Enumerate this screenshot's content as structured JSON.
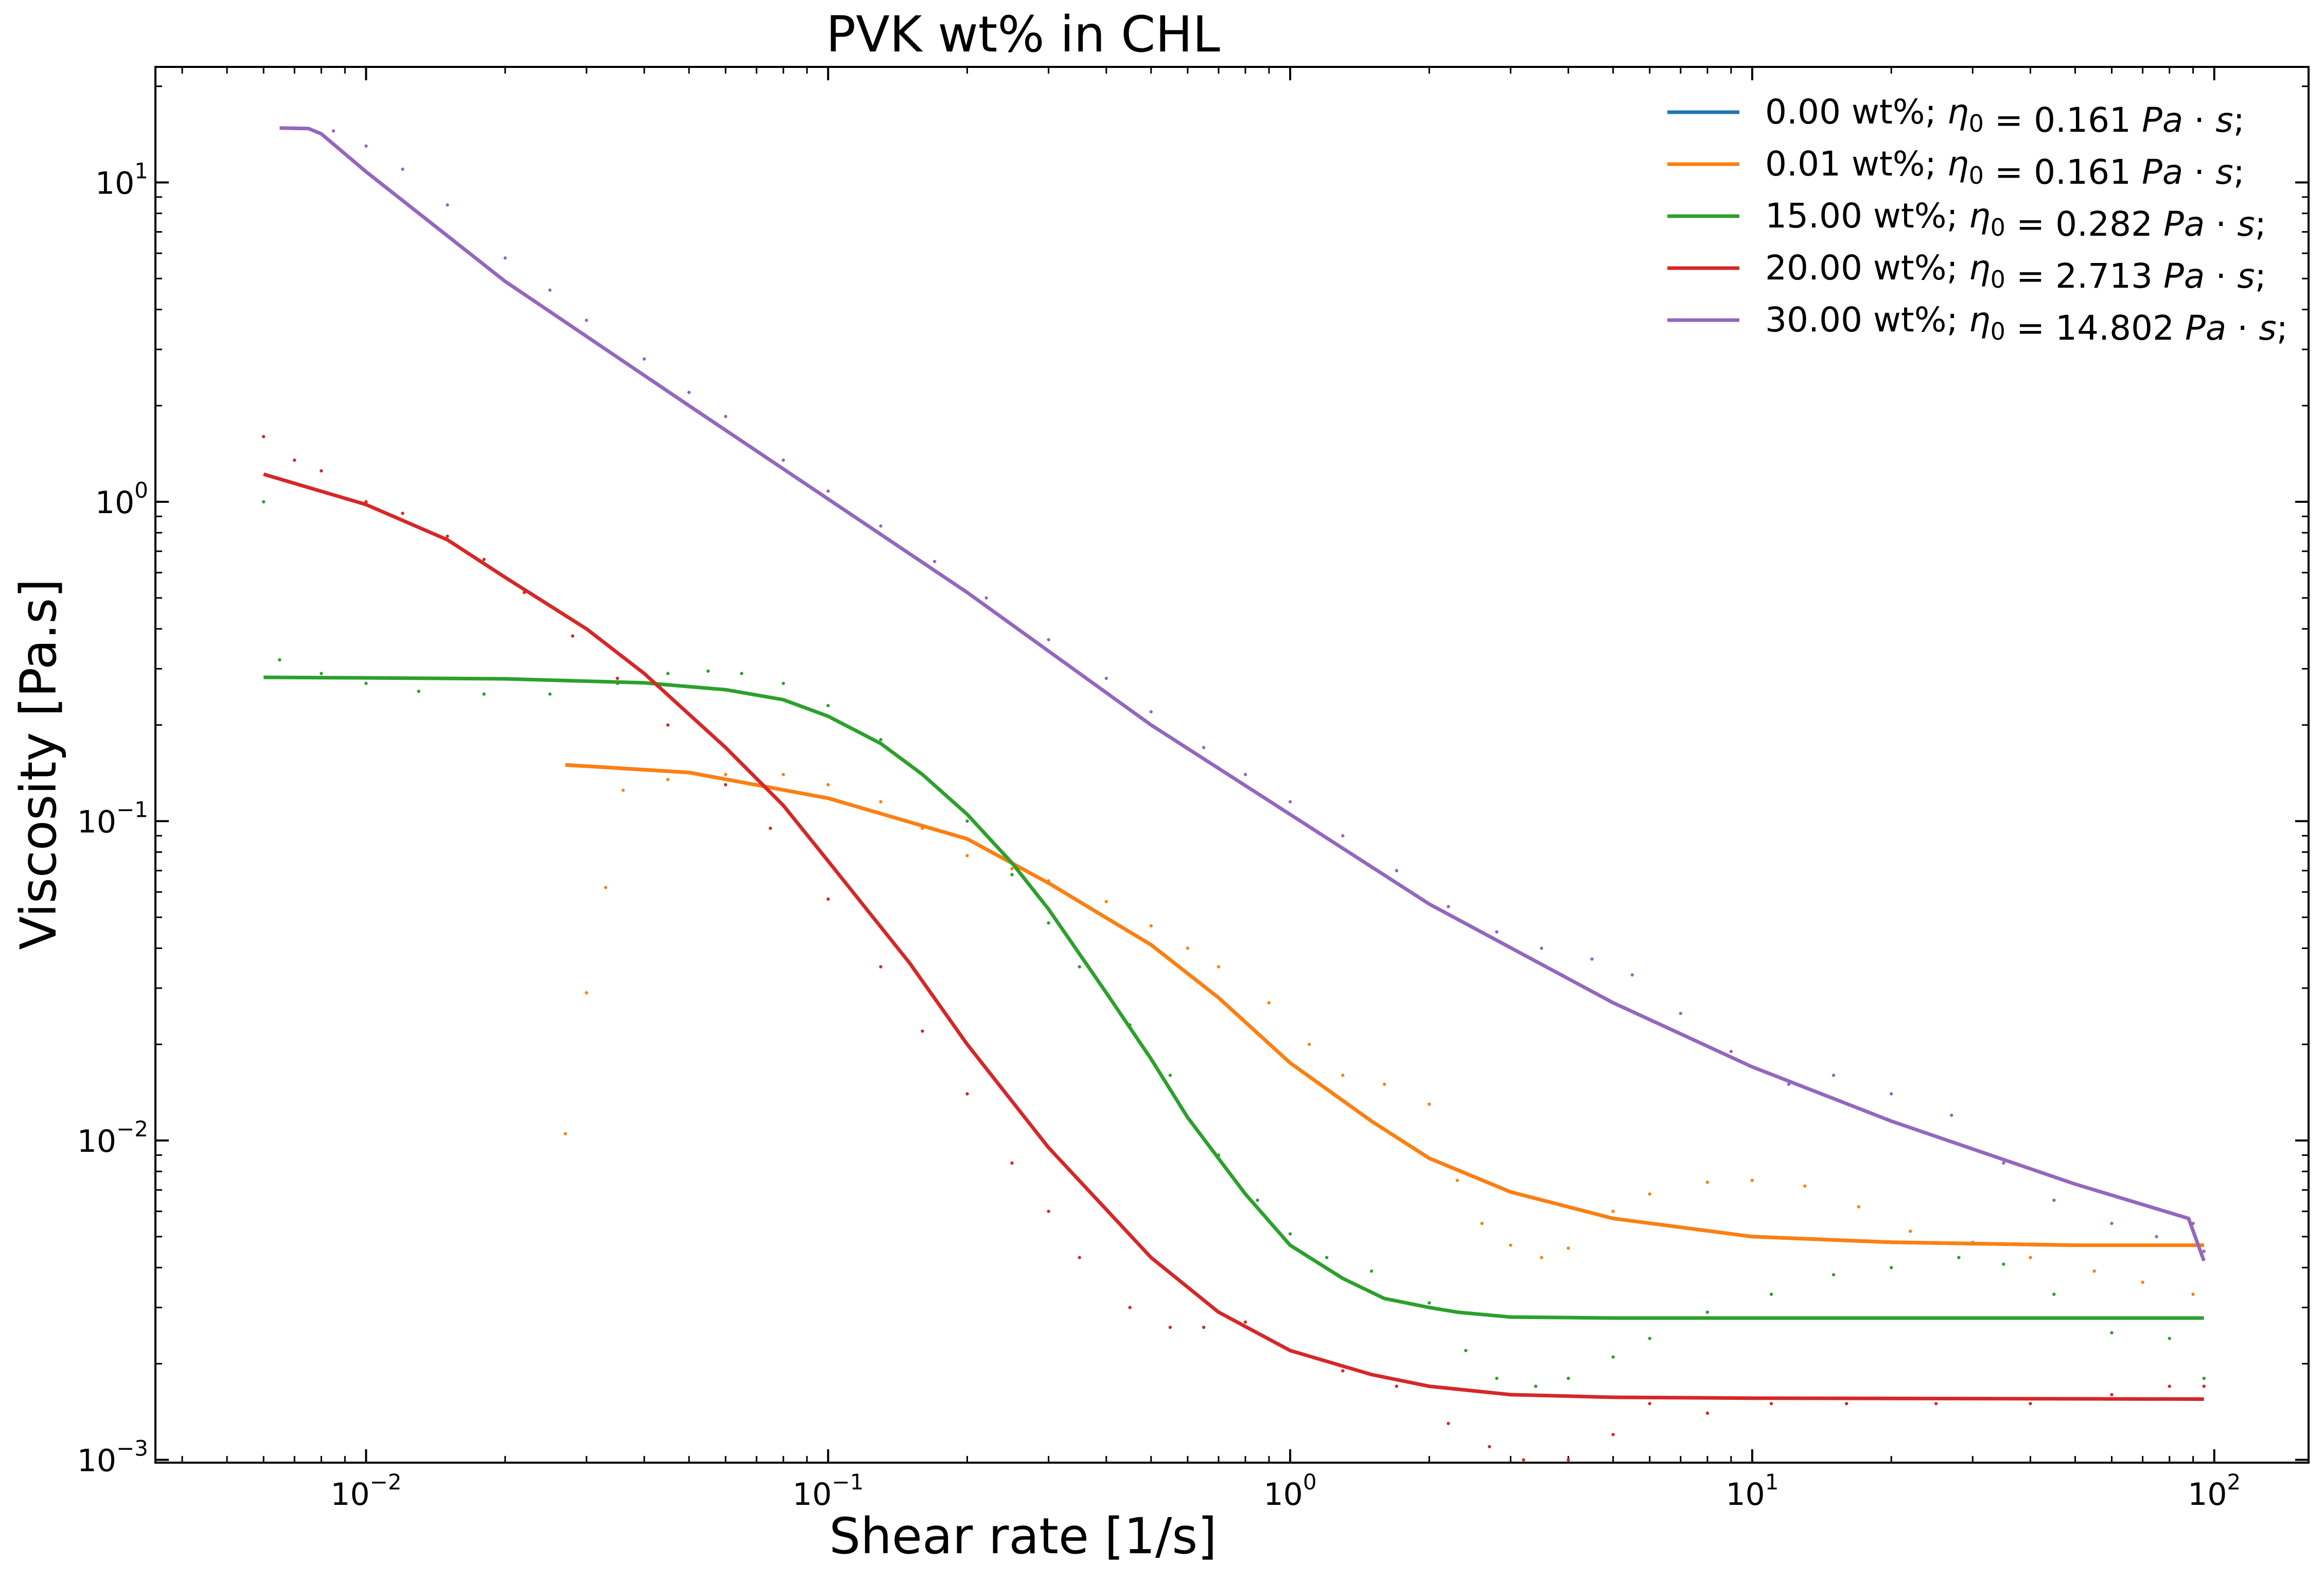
{
  "chart_data": {
    "type": "line",
    "title": "PVK wt% in CHL",
    "xlabel": "Shear rate [1/s]",
    "ylabel": "Viscosity [Pa.s]",
    "xscale": "log",
    "yscale": "log",
    "xlim": [
      0.0035,
      160
    ],
    "ylim": [
      0.00098,
      23
    ],
    "x_ticks": [
      {
        "value": 0.01,
        "base": "10",
        "exp": "−2"
      },
      {
        "value": 0.1,
        "base": "10",
        "exp": "−1"
      },
      {
        "value": 1,
        "base": "10",
        "exp": "0"
      },
      {
        "value": 10,
        "base": "10",
        "exp": "1"
      },
      {
        "value": 100,
        "base": "10",
        "exp": "2"
      }
    ],
    "y_ticks": [
      {
        "value": 0.001,
        "base": "10",
        "exp": "−3"
      },
      {
        "value": 0.01,
        "base": "10",
        "exp": "−2"
      },
      {
        "value": 0.1,
        "base": "10",
        "exp": "−1"
      },
      {
        "value": 1,
        "base": "10",
        "exp": "0"
      },
      {
        "value": 10,
        "base": "10",
        "exp": "1"
      }
    ],
    "legend_position": "top-right",
    "grid": false,
    "series": [
      {
        "name": "0.00 wt%; η0 = 0.161 Pa · s;",
        "legend_prefix": "0.00 wt%; ",
        "legend_eta": "0.161",
        "color": "#1f77b4",
        "fit": [
          [
            0.027,
            0.15
          ],
          [
            0.05,
            0.142
          ],
          [
            0.1,
            0.118
          ],
          [
            0.2,
            0.088
          ],
          [
            0.3,
            0.064
          ],
          [
            0.5,
            0.041
          ],
          [
            0.7,
            0.028
          ],
          [
            1.0,
            0.0175
          ],
          [
            1.5,
            0.0115
          ],
          [
            2.0,
            0.0088
          ],
          [
            3.0,
            0.0069
          ],
          [
            5.0,
            0.0057
          ],
          [
            10,
            0.005
          ],
          [
            20,
            0.0048
          ],
          [
            50,
            0.0047
          ],
          [
            95,
            0.0047
          ]
        ],
        "points": []
      },
      {
        "name": "0.01 wt%; η0 = 0.161 Pa · s;",
        "legend_prefix": "0.01 wt%; ",
        "legend_eta": "0.161",
        "color": "#ff7f0e",
        "fit": [
          [
            0.027,
            0.15
          ],
          [
            0.05,
            0.142
          ],
          [
            0.1,
            0.118
          ],
          [
            0.2,
            0.088
          ],
          [
            0.3,
            0.064
          ],
          [
            0.5,
            0.041
          ],
          [
            0.7,
            0.028
          ],
          [
            1.0,
            0.0175
          ],
          [
            1.5,
            0.0115
          ],
          [
            2.0,
            0.0088
          ],
          [
            3.0,
            0.0069
          ],
          [
            5.0,
            0.0057
          ],
          [
            10,
            0.005
          ],
          [
            20,
            0.0048
          ],
          [
            50,
            0.0047
          ],
          [
            95,
            0.0047
          ]
        ],
        "points": [
          [
            0.027,
            0.0105
          ],
          [
            0.03,
            0.029
          ],
          [
            0.033,
            0.062
          ],
          [
            0.036,
            0.125
          ],
          [
            0.045,
            0.135
          ],
          [
            0.06,
            0.14
          ],
          [
            0.08,
            0.14
          ],
          [
            0.1,
            0.13
          ],
          [
            0.13,
            0.115
          ],
          [
            0.16,
            0.095
          ],
          [
            0.2,
            0.078
          ],
          [
            0.25,
            0.071
          ],
          [
            0.3,
            0.065
          ],
          [
            0.4,
            0.056
          ],
          [
            0.5,
            0.047
          ],
          [
            0.6,
            0.04
          ],
          [
            0.7,
            0.035
          ],
          [
            0.9,
            0.027
          ],
          [
            1.1,
            0.02
          ],
          [
            1.3,
            0.016
          ],
          [
            1.6,
            0.015
          ],
          [
            2.0,
            0.013
          ],
          [
            2.3,
            0.0075
          ],
          [
            2.6,
            0.0055
          ],
          [
            3.0,
            0.0047
          ],
          [
            3.5,
            0.0043
          ],
          [
            4.0,
            0.0046
          ],
          [
            5.0,
            0.006
          ],
          [
            6.0,
            0.0068
          ],
          [
            8.0,
            0.0074
          ],
          [
            10,
            0.0075
          ],
          [
            13,
            0.0072
          ],
          [
            17,
            0.0062
          ],
          [
            22,
            0.0052
          ],
          [
            30,
            0.0048
          ],
          [
            40,
            0.0043
          ],
          [
            55,
            0.0039
          ],
          [
            70,
            0.0036
          ],
          [
            90,
            0.0033
          ]
        ]
      },
      {
        "name": "15.00 wt%; η0 = 0.282 Pa · s;",
        "legend_prefix": "15.00 wt%; ",
        "legend_eta": "0.282",
        "color": "#2ca02c",
        "fit": [
          [
            0.006,
            0.282
          ],
          [
            0.01,
            0.281
          ],
          [
            0.02,
            0.279
          ],
          [
            0.04,
            0.271
          ],
          [
            0.06,
            0.258
          ],
          [
            0.08,
            0.24
          ],
          [
            0.1,
            0.213
          ],
          [
            0.13,
            0.175
          ],
          [
            0.16,
            0.14
          ],
          [
            0.2,
            0.105
          ],
          [
            0.25,
            0.074
          ],
          [
            0.3,
            0.053
          ],
          [
            0.4,
            0.029
          ],
          [
            0.5,
            0.018
          ],
          [
            0.6,
            0.0118
          ],
          [
            0.8,
            0.0068
          ],
          [
            1.0,
            0.0047
          ],
          [
            1.3,
            0.0037
          ],
          [
            1.6,
            0.0032
          ],
          [
            2.0,
            0.003
          ],
          [
            2.3,
            0.0029
          ],
          [
            3.0,
            0.0028
          ],
          [
            5.0,
            0.00278
          ],
          [
            10,
            0.00278
          ],
          [
            95,
            0.00278
          ]
        ],
        "points": [
          [
            0.006,
            1.0
          ],
          [
            0.0065,
            0.32
          ],
          [
            0.008,
            0.29
          ],
          [
            0.01,
            0.27
          ],
          [
            0.013,
            0.255
          ],
          [
            0.018,
            0.25
          ],
          [
            0.025,
            0.25
          ],
          [
            0.035,
            0.27
          ],
          [
            0.045,
            0.29
          ],
          [
            0.055,
            0.295
          ],
          [
            0.065,
            0.29
          ],
          [
            0.08,
            0.27
          ],
          [
            0.1,
            0.23
          ],
          [
            0.13,
            0.18
          ],
          [
            0.16,
            0.14
          ],
          [
            0.2,
            0.1
          ],
          [
            0.25,
            0.068
          ],
          [
            0.3,
            0.048
          ],
          [
            0.35,
            0.035
          ],
          [
            0.45,
            0.023
          ],
          [
            0.55,
            0.016
          ],
          [
            0.7,
            0.009
          ],
          [
            0.85,
            0.0065
          ],
          [
            1.0,
            0.0051
          ],
          [
            1.2,
            0.0043
          ],
          [
            1.5,
            0.0039
          ],
          [
            2.0,
            0.0031
          ],
          [
            2.4,
            0.0022
          ],
          [
            2.8,
            0.0018
          ],
          [
            3.4,
            0.0017
          ],
          [
            4.0,
            0.0018
          ],
          [
            5.0,
            0.0021
          ],
          [
            6.0,
            0.0024
          ],
          [
            8.0,
            0.0029
          ],
          [
            11,
            0.0033
          ],
          [
            15,
            0.0038
          ],
          [
            20,
            0.004
          ],
          [
            28,
            0.0043
          ],
          [
            35,
            0.0041
          ],
          [
            45,
            0.0033
          ],
          [
            60,
            0.0025
          ],
          [
            80,
            0.0024
          ],
          [
            95,
            0.0018
          ]
        ]
      },
      {
        "name": "20.00 wt%; η0 = 2.713 Pa · s;",
        "legend_prefix": "20.00 wt%; ",
        "legend_eta": "2.713",
        "color": "#d62728",
        "fit": [
          [
            0.006,
            1.22
          ],
          [
            0.01,
            0.98
          ],
          [
            0.015,
            0.76
          ],
          [
            0.02,
            0.58
          ],
          [
            0.03,
            0.4
          ],
          [
            0.04,
            0.29
          ],
          [
            0.06,
            0.17
          ],
          [
            0.08,
            0.112
          ],
          [
            0.1,
            0.075
          ],
          [
            0.15,
            0.036
          ],
          [
            0.2,
            0.02
          ],
          [
            0.3,
            0.0095
          ],
          [
            0.5,
            0.0043
          ],
          [
            0.7,
            0.0029
          ],
          [
            1.0,
            0.0022
          ],
          [
            1.5,
            0.00185
          ],
          [
            2.0,
            0.0017
          ],
          [
            3.0,
            0.0016
          ],
          [
            5.0,
            0.00157
          ],
          [
            10,
            0.00156
          ],
          [
            95,
            0.00155
          ]
        ],
        "points": [
          [
            0.006,
            1.6
          ],
          [
            0.007,
            1.35
          ],
          [
            0.008,
            1.25
          ],
          [
            0.01,
            1.0
          ],
          [
            0.012,
            0.92
          ],
          [
            0.015,
            0.78
          ],
          [
            0.018,
            0.66
          ],
          [
            0.022,
            0.52
          ],
          [
            0.028,
            0.38
          ],
          [
            0.035,
            0.28
          ],
          [
            0.045,
            0.2
          ],
          [
            0.06,
            0.13
          ],
          [
            0.075,
            0.095
          ],
          [
            0.1,
            0.057
          ],
          [
            0.13,
            0.035
          ],
          [
            0.16,
            0.022
          ],
          [
            0.2,
            0.014
          ],
          [
            0.25,
            0.0085
          ],
          [
            0.3,
            0.006
          ],
          [
            0.35,
            0.0043
          ],
          [
            0.45,
            0.003
          ],
          [
            0.55,
            0.0026
          ],
          [
            0.65,
            0.0026
          ],
          [
            0.8,
            0.0027
          ],
          [
            1.0,
            0.0022
          ],
          [
            1.3,
            0.0019
          ],
          [
            1.7,
            0.0017
          ],
          [
            2.2,
            0.0013
          ],
          [
            2.7,
            0.0011
          ],
          [
            3.2,
            0.001
          ],
          [
            4.0,
            0.001
          ],
          [
            5.0,
            0.0012
          ],
          [
            6.0,
            0.0015
          ],
          [
            8.0,
            0.0014
          ],
          [
            11,
            0.0015
          ],
          [
            16,
            0.0015
          ],
          [
            25,
            0.0015
          ],
          [
            40,
            0.0015
          ],
          [
            60,
            0.0016
          ],
          [
            80,
            0.0017
          ],
          [
            95,
            0.0017
          ]
        ]
      },
      {
        "name": "30.00 wt%; η0 = 14.802 Pa · s;",
        "legend_prefix": "30.00 wt%; ",
        "legend_eta": "14.802",
        "color": "#9467bd",
        "fit": [
          [
            0.0065,
            14.8
          ],
          [
            0.0075,
            14.75
          ],
          [
            0.008,
            14.2
          ],
          [
            0.01,
            10.8
          ],
          [
            0.02,
            4.9
          ],
          [
            0.05,
            2.0
          ],
          [
            0.1,
            1.02
          ],
          [
            0.2,
            0.52
          ],
          [
            0.5,
            0.2
          ],
          [
            1.0,
            0.105
          ],
          [
            2.0,
            0.055
          ],
          [
            5.0,
            0.027
          ],
          [
            10,
            0.017
          ],
          [
            20,
            0.0115
          ],
          [
            50,
            0.0073
          ],
          [
            88,
            0.0057
          ],
          [
            95,
            0.0042
          ]
        ],
        "points": [
          [
            0.007,
            14.8
          ],
          [
            0.0085,
            14.5
          ],
          [
            0.01,
            13.0
          ],
          [
            0.012,
            11.0
          ],
          [
            0.015,
            8.5
          ],
          [
            0.02,
            5.8
          ],
          [
            0.025,
            4.6
          ],
          [
            0.03,
            3.7
          ],
          [
            0.04,
            2.8
          ],
          [
            0.05,
            2.2
          ],
          [
            0.06,
            1.85
          ],
          [
            0.08,
            1.35
          ],
          [
            0.1,
            1.08
          ],
          [
            0.13,
            0.84
          ],
          [
            0.17,
            0.65
          ],
          [
            0.22,
            0.5
          ],
          [
            0.3,
            0.37
          ],
          [
            0.4,
            0.28
          ],
          [
            0.5,
            0.22
          ],
          [
            0.65,
            0.17
          ],
          [
            0.8,
            0.14
          ],
          [
            1.0,
            0.115
          ],
          [
            1.3,
            0.09
          ],
          [
            1.7,
            0.07
          ],
          [
            2.2,
            0.054
          ],
          [
            2.8,
            0.045
          ],
          [
            3.5,
            0.04
          ],
          [
            4.5,
            0.037
          ],
          [
            5.5,
            0.033
          ],
          [
            7,
            0.025
          ],
          [
            9,
            0.019
          ],
          [
            12,
            0.015
          ],
          [
            15,
            0.016
          ],
          [
            20,
            0.014
          ],
          [
            27,
            0.012
          ],
          [
            35,
            0.0085
          ],
          [
            45,
            0.0065
          ],
          [
            60,
            0.0055
          ],
          [
            75,
            0.005
          ],
          [
            90,
            0.0055
          ],
          [
            95,
            0.0045
          ]
        ]
      }
    ]
  }
}
